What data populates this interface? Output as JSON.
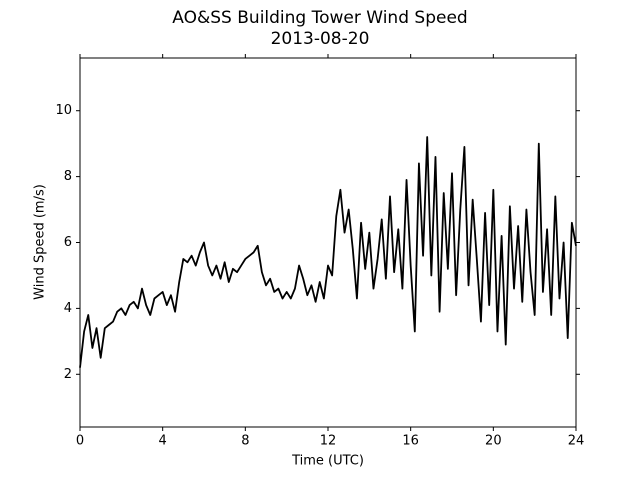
{
  "chart_data": {
    "type": "line",
    "title": "AO&SS Building Tower Wind Speed",
    "subtitle": "2013-08-20",
    "x_label": "Time (UTC)",
    "y_label": "Wind Speed (m/s)",
    "color": "#000000",
    "xlim": [
      0,
      24
    ],
    "xticks": [
      0,
      4,
      8,
      12,
      16,
      20,
      24
    ],
    "ylim": [
      0.4,
      11.6
    ],
    "yticks": [
      2,
      4,
      6,
      8,
      10
    ],
    "x": [
      0,
      0.2,
      0.4,
      0.6,
      0.8,
      1,
      1.2,
      1.4,
      1.6,
      1.8,
      2,
      2.2,
      2.4,
      2.6,
      2.8,
      3,
      3.2,
      3.4,
      3.6,
      3.8,
      4,
      4.2,
      4.4,
      4.6,
      4.8,
      5,
      5.2,
      5.4,
      5.6,
      5.8,
      6,
      6.2,
      6.4,
      6.6,
      6.8,
      7,
      7.2,
      7.4,
      7.6,
      7.8,
      8,
      8.2,
      8.4,
      8.6,
      8.8,
      9,
      9.2,
      9.4,
      9.6,
      9.8,
      10,
      10.2,
      10.4,
      10.6,
      10.8,
      11,
      11.2,
      11.4,
      11.6,
      11.8,
      12,
      12.2,
      12.4,
      12.6,
      12.8,
      13,
      13.2,
      13.4,
      13.6,
      13.8,
      14,
      14.2,
      14.4,
      14.6,
      14.8,
      15,
      15.2,
      15.4,
      15.6,
      15.8,
      16,
      16.2,
      16.4,
      16.6,
      16.8,
      17,
      17.2,
      17.4,
      17.6,
      17.8,
      18,
      18.2,
      18.4,
      18.6,
      18.8,
      19,
      19.2,
      19.4,
      19.6,
      19.8,
      20,
      20.2,
      20.4,
      20.6,
      20.8,
      21,
      21.2,
      21.4,
      21.6,
      21.8,
      22,
      22.2,
      22.4,
      22.6,
      22.8,
      23,
      23.2,
      23.4,
      23.6,
      23.8,
      24
    ],
    "values": [
      2.2,
      3.3,
      3.8,
      2.8,
      3.4,
      2.5,
      3.4,
      3.5,
      3.6,
      3.9,
      4.0,
      3.8,
      4.1,
      4.2,
      4.0,
      4.6,
      4.1,
      3.8,
      4.3,
      4.4,
      4.5,
      4.1,
      4.4,
      3.9,
      4.8,
      5.5,
      5.4,
      5.6,
      5.3,
      5.7,
      6.0,
      5.3,
      5.0,
      5.3,
      4.9,
      5.4,
      4.8,
      5.2,
      5.1,
      5.3,
      5.5,
      5.6,
      5.7,
      5.9,
      5.1,
      4.7,
      4.9,
      4.5,
      4.6,
      4.3,
      4.5,
      4.3,
      4.6,
      5.3,
      4.9,
      4.4,
      4.7,
      4.2,
      4.8,
      4.3,
      5.3,
      5.0,
      6.8,
      7.6,
      6.3,
      7.0,
      5.8,
      4.3,
      6.6,
      5.2,
      6.3,
      4.6,
      5.5,
      6.7,
      4.9,
      7.4,
      5.1,
      6.4,
      4.6,
      7.9,
      5.3,
      3.3,
      8.4,
      5.6,
      9.2,
      5.0,
      8.6,
      3.9,
      7.5,
      5.2,
      8.1,
      4.4,
      7.0,
      8.9,
      4.7,
      7.3,
      5.5,
      3.6,
      6.9,
      4.1,
      7.6,
      3.3,
      6.2,
      2.9,
      7.1,
      4.6,
      6.5,
      4.2,
      7.0,
      5.1,
      3.8,
      9.0,
      4.5,
      6.4,
      3.8,
      7.4,
      4.3,
      6.0,
      3.1,
      6.6,
      5.9
    ]
  }
}
